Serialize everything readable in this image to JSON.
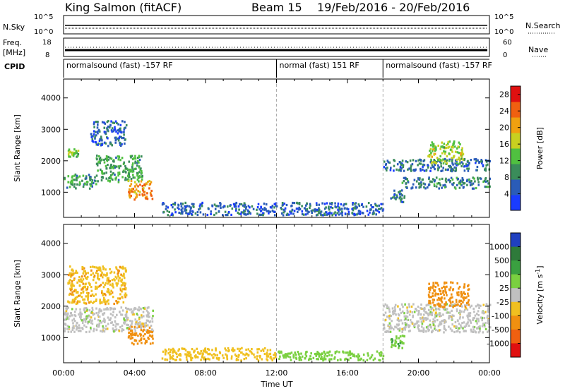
{
  "header": {
    "station": "King Salmon (fitACF)",
    "beam": "Beam 15",
    "dates": "19/Feb/2016 - 20/Feb/2016"
  },
  "strips": {
    "nsky_label": "N.Sky",
    "nsky_ticks": [
      "10^5",
      "10^0"
    ],
    "nsearch_label": "N.Search",
    "nsearch_ticks": [
      "10^5",
      "10^0"
    ],
    "freq_label": "Freq.",
    "freq_unit": "[MHz]",
    "freq_ticks": [
      "18",
      "8"
    ],
    "nave_label": "Nave",
    "nave_ticks": [
      "60",
      "0"
    ],
    "cpid_label": "CPID",
    "cpid_segments": [
      {
        "start_hour": 0,
        "end_hour": 12,
        "text": "normalsound (fast) -157 RF"
      },
      {
        "start_hour": 12,
        "end_hour": 18,
        "text": "normal (fast) 151 RF"
      },
      {
        "start_hour": 18,
        "end_hour": 24,
        "text": "normalsound (fast) -157 RF"
      }
    ]
  },
  "chart_data": [
    {
      "type": "heatmap",
      "id": "power",
      "ylabel": "Slant Range [km]",
      "xlabel": "",
      "xlim": [
        0,
        24
      ],
      "ylim": [
        200,
        4600
      ],
      "yticks": [
        "1000",
        "2000",
        "3000",
        "4000"
      ],
      "colorbar": {
        "label": "Power [dB]",
        "ticks": [
          "4",
          "8",
          "12",
          "16",
          "20",
          "24",
          "28"
        ],
        "range": [
          0,
          30
        ],
        "colors": [
          "#1a3cff",
          "#2a5cb8",
          "#3a8c5a",
          "#50c040",
          "#c8d020",
          "#f0a010",
          "#f06010",
          "#e01010"
        ]
      },
      "features": [
        {
          "start_hour": 0.0,
          "end_hour": 1.8,
          "range_low_km": 1150,
          "range_high_km": 1600,
          "power_db": 10
        },
        {
          "start_hour": 1.8,
          "end_hour": 4.4,
          "range_low_km": 1350,
          "range_high_km": 2200,
          "power_db": 11
        },
        {
          "start_hour": 3.6,
          "end_hour": 5.0,
          "range_low_km": 800,
          "range_high_km": 1400,
          "power_db": 22
        },
        {
          "start_hour": 0.2,
          "end_hour": 0.8,
          "range_low_km": 2150,
          "range_high_km": 2400,
          "power_db": 14
        },
        {
          "start_hour": 1.5,
          "end_hour": 3.5,
          "range_low_km": 2500,
          "range_high_km": 3300,
          "power_db": 6
        },
        {
          "start_hour": 5.5,
          "end_hour": 18.0,
          "range_low_km": 300,
          "range_high_km": 700,
          "power_db": 6
        },
        {
          "start_hour": 18.0,
          "end_hour": 24.0,
          "range_low_km": 1700,
          "range_high_km": 2100,
          "power_db": 7
        },
        {
          "start_hour": 20.5,
          "end_hour": 22.5,
          "range_low_km": 1950,
          "range_high_km": 2650,
          "power_db": 15
        },
        {
          "start_hour": 19.0,
          "end_hour": 24.0,
          "range_low_km": 1150,
          "range_high_km": 1500,
          "power_db": 8
        },
        {
          "start_hour": 18.4,
          "end_hour": 19.2,
          "range_low_km": 700,
          "range_high_km": 1100,
          "power_db": 7
        }
      ]
    },
    {
      "type": "heatmap",
      "id": "velocity",
      "ylabel": "Slant Range [km]",
      "xlabel": "Time UT",
      "xlim": [
        0,
        24
      ],
      "ylim": [
        200,
        4600
      ],
      "yticks": [
        "1000",
        "2000",
        "3000",
        "4000"
      ],
      "xticks": [
        "00:00",
        "04:00",
        "08:00",
        "12:00",
        "16:00",
        "20:00",
        "00:00"
      ],
      "colorbar": {
        "label": "Velocity [m s^-1]",
        "ticks": [
          "1000",
          "500",
          "100",
          "25",
          "-25",
          "-100",
          "-500",
          "-1000"
        ],
        "colors": [
          "#2040c0",
          "#2e7a3a",
          "#3aa040",
          "#7ad040",
          "#c0c0c0",
          "#f0c020",
          "#f09010",
          "#f06010",
          "#e01010"
        ]
      },
      "features": [
        {
          "start_hour": 0.0,
          "end_hour": 5.0,
          "range_low_km": 1200,
          "range_high_km": 2000,
          "velocity": 0
        },
        {
          "start_hour": 3.6,
          "end_hour": 5.0,
          "range_low_km": 800,
          "range_high_km": 1400,
          "velocity": -150
        },
        {
          "start_hour": 0.2,
          "end_hour": 3.5,
          "range_low_km": 2100,
          "range_high_km": 3300,
          "velocity": -80
        },
        {
          "start_hour": 5.5,
          "end_hour": 12.0,
          "range_low_km": 300,
          "range_high_km": 700,
          "velocity": -60
        },
        {
          "start_hour": 12.0,
          "end_hour": 18.0,
          "range_low_km": 300,
          "range_high_km": 600,
          "velocity": 60
        },
        {
          "start_hour": 18.0,
          "end_hour": 24.0,
          "range_low_km": 1200,
          "range_high_km": 2100,
          "velocity": 0
        },
        {
          "start_hour": 20.5,
          "end_hour": 22.8,
          "range_low_km": 2000,
          "range_high_km": 2800,
          "velocity": -400
        },
        {
          "start_hour": 18.4,
          "end_hour": 19.2,
          "range_low_km": 700,
          "range_high_km": 1100,
          "velocity": 80
        }
      ]
    }
  ]
}
